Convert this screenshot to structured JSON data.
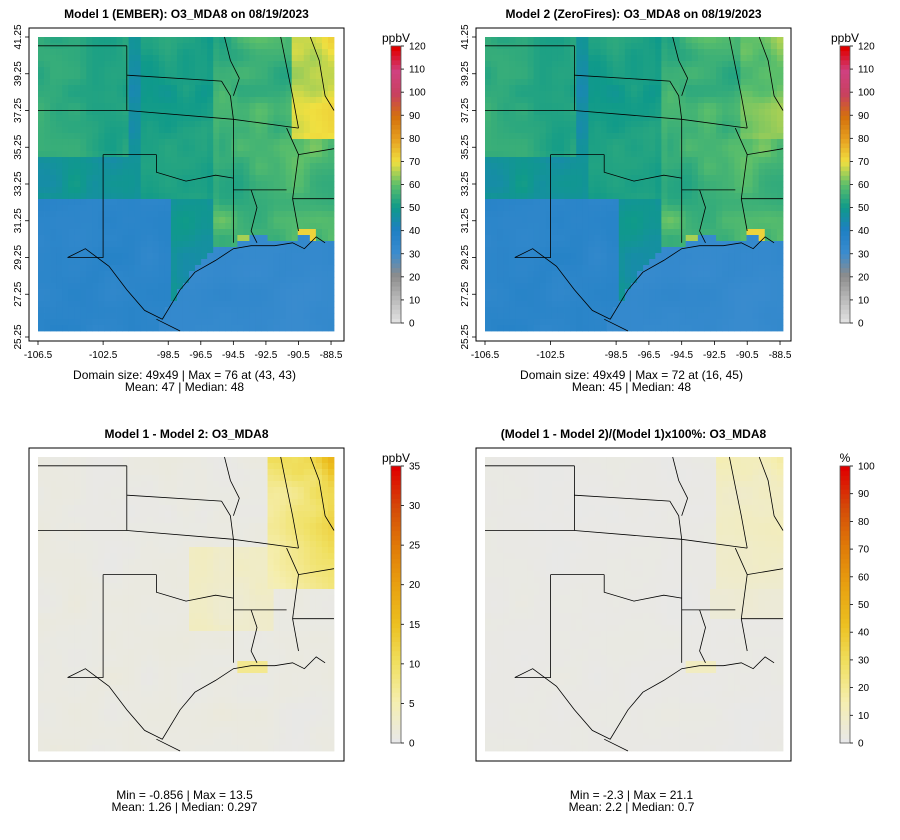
{
  "panels": [
    {
      "title": "Model 1 (EMBER): O3_MDA8 on 08/19/2023",
      "stat1": "Domain size: 49x49 | Max = 76 at (43, 43)",
      "stat2": "Mean: 47 |  Median: 48",
      "unit": "ppbV",
      "scale": {
        "min": 0,
        "max": 120,
        "ticks": [
          "0",
          "10",
          "20",
          "30",
          "40",
          "50",
          "60",
          "70",
          "80",
          "90",
          "100",
          "110",
          "120"
        ]
      },
      "show_axes": true,
      "field": "model1"
    },
    {
      "title": "Model 2 (ZeroFires): O3_MDA8 on 08/19/2023",
      "stat1": "Domain size: 49x49 | Max = 72 at (16, 45)",
      "stat2": "Mean: 45 |  Median: 48",
      "unit": "ppbV",
      "scale": {
        "min": 0,
        "max": 120,
        "ticks": [
          "0",
          "10",
          "20",
          "30",
          "40",
          "50",
          "60",
          "70",
          "80",
          "90",
          "100",
          "110",
          "120"
        ]
      },
      "show_axes": true,
      "field": "model2"
    },
    {
      "title": "Model 1 - Model 2: O3_MDA8",
      "stat1": "Min = -0.856 | Max = 13.5",
      "stat2": "Mean: 1.26 |  Median: 0.297",
      "unit": "ppbV",
      "scale": {
        "min": 0,
        "max": 35,
        "ticks": [
          "0",
          "5",
          "10",
          "15",
          "20",
          "25",
          "30",
          "35"
        ]
      },
      "show_axes": false,
      "field": "diff"
    },
    {
      "title": "(Model 1 - Model 2)/(Model 1)x100%: O3_MDA8",
      "stat1": "Min = -2.3 | Max = 21.1",
      "stat2": "Mean: 2.2 |  Median: 0.7",
      "unit": "%",
      "scale": {
        "min": 0,
        "max": 100,
        "ticks": [
          "0",
          "10",
          "20",
          "30",
          "40",
          "50",
          "60",
          "70",
          "80",
          "90",
          "100"
        ]
      },
      "show_axes": false,
      "field": "pct"
    }
  ],
  "axes": {
    "x_ticks": [
      "-106.5",
      "-102.5",
      "-98.5",
      "-96.5",
      "-94.5",
      "-92.5",
      "-90.5",
      "-88.5"
    ],
    "y_ticks": [
      "25.25",
      "27.25",
      "29.25",
      "31.25",
      "33.25",
      "35.25",
      "37.25",
      "39.25",
      "41.25"
    ]
  },
  "colors": {
    "panel_bg": "#e8e8e8",
    "ramp_conc": [
      "#e0e0e0",
      "#b8b8b8",
      "#8c8c8c",
      "#3a8ccf",
      "#1e7fc4",
      "#0f9a8a",
      "#5cbf6a",
      "#f0e040",
      "#e6a020",
      "#d4700c",
      "#c84060",
      "#d04080",
      "#e00000"
    ],
    "ramp_diff": [
      "#e8e8e8",
      "#f5eeb0",
      "#f0e060",
      "#ecc020",
      "#e8a010",
      "#e07a08",
      "#d44a08",
      "#e00000"
    ]
  }
}
